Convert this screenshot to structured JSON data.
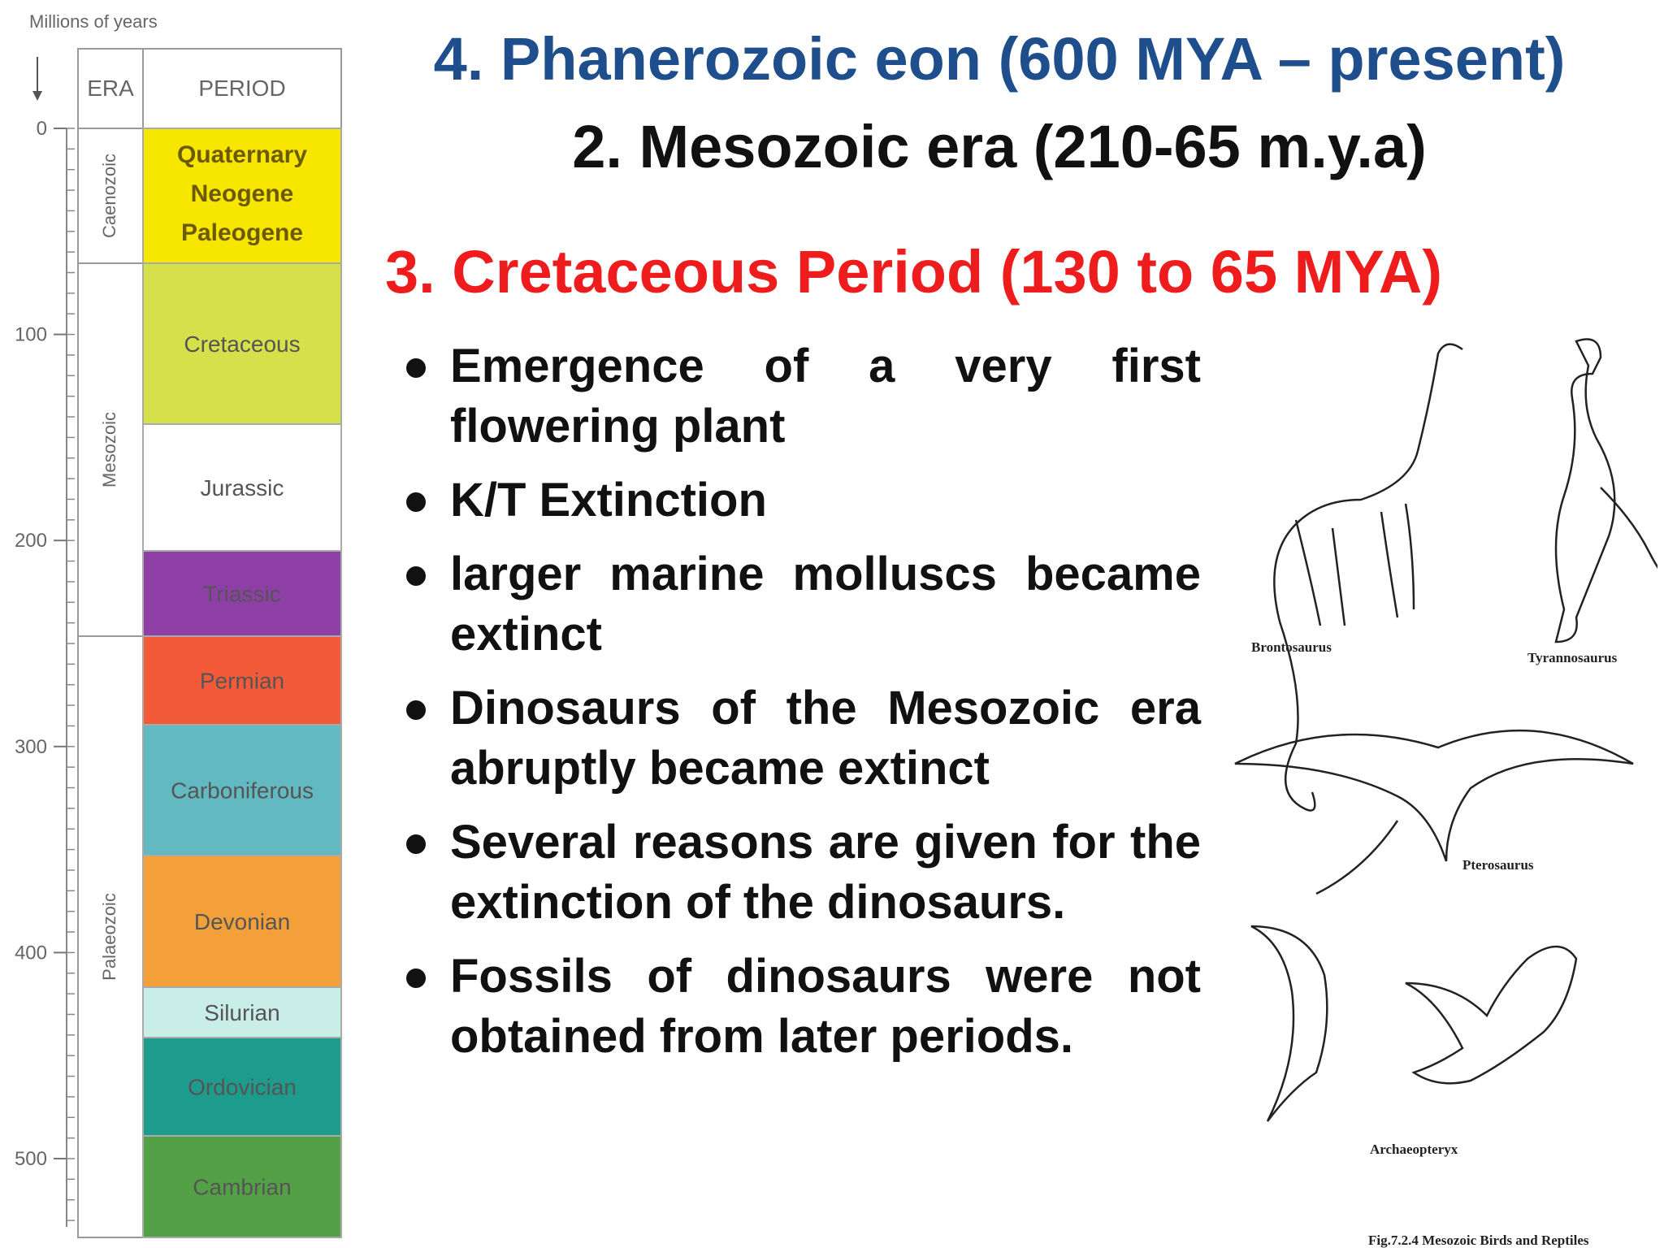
{
  "timescale": {
    "axis_label": "Millions of years",
    "ticks": [
      0,
      100,
      200,
      300,
      400,
      500
    ],
    "headers": {
      "era": "ERA",
      "period": "PERIOD"
    },
    "eras": [
      "Caenozoic",
      "Mesozoic",
      "Palaeozoic"
    ],
    "periods": [
      "Quaternary",
      "Neogene",
      "Paleogene",
      "Cretaceous",
      "Jurassic",
      "Triassic",
      "Permian",
      "Carboniferous",
      "Devonian",
      "Silurian",
      "Ordovician",
      "Cambrian"
    ]
  },
  "slide": {
    "title": "4. Phanerozoic eon (600 MYA – present)",
    "subtitle": "2. Mesozoic era (210-65 m.y.a)",
    "heading": "3. Cretaceous Period (130 to 65 MYA)",
    "bullets": [
      "Emergence of a very first flowering plant",
      "K/T Extinction",
      "larger marine molluscs became extinct",
      "Dinosaurs of the Mesozoic era abruptly became extinct",
      "Several reasons are given for the extinction of the dinosaurs.",
      "Fossils of dinosaurs were not obtained from later periods."
    ]
  },
  "figure": {
    "labels": [
      "Brontosaurus",
      "Tyrannosaurus",
      "Pterosaurus",
      "Archaeopteryx"
    ],
    "caption": "Fig.7.2.4 Mesozoic Birds and Reptiles"
  }
}
